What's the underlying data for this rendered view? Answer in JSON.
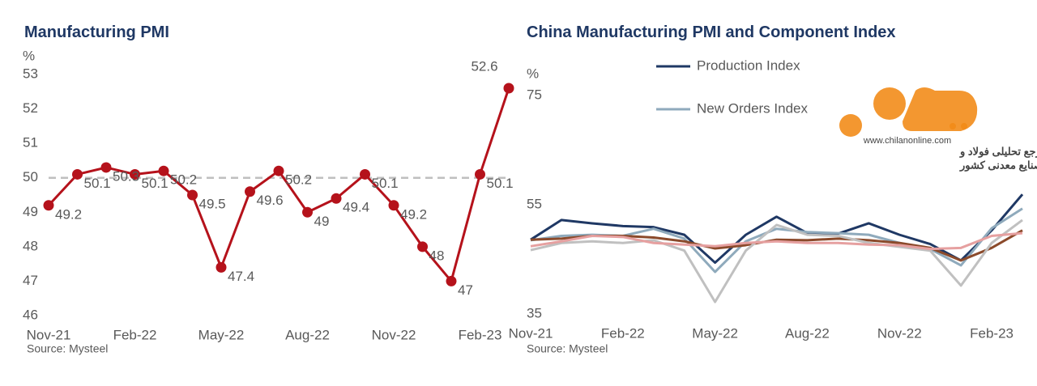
{
  "chart_data": [
    {
      "type": "line",
      "title": "Manufacturing PMI",
      "y_unit": "%",
      "source": "Source: Mysteel",
      "categories": [
        "Nov-21",
        null,
        null,
        "Feb-22",
        null,
        null,
        "May-22",
        null,
        null,
        "Aug-22",
        null,
        null,
        "Nov-22",
        null,
        null,
        "Feb-23",
        null
      ],
      "series": [
        {
          "color": "#b5121b",
          "values": [
            49.2,
            50.1,
            50.3,
            50.1,
            50.2,
            49.5,
            47.4,
            49.6,
            50.2,
            49,
            49.4,
            50.1,
            49.2,
            48,
            47,
            50.1,
            52.6
          ]
        }
      ],
      "markers": true,
      "data_labels": true,
      "reference_line": 50,
      "reference_color": "#bfbfbf",
      "ylim": [
        46,
        53
      ],
      "yticks": [
        46,
        47,
        48,
        49,
        50,
        51,
        52,
        53
      ],
      "grid": false
    },
    {
      "type": "line",
      "title": "China Manufacturing PMI and Component Index",
      "y_unit": "%",
      "source": "Source: Mysteel",
      "categories": [
        "Nov-21",
        null,
        null,
        "Feb-22",
        null,
        null,
        "May-22",
        null,
        null,
        "Aug-22",
        null,
        null,
        "Nov-22",
        null,
        null,
        "Feb-23",
        null
      ],
      "series": [
        {
          "name": "Production Index",
          "color": "#1f3864",
          "values": [
            48.6,
            52.2,
            51.6,
            51.1,
            50.9,
            49.5,
            44.4,
            49.5,
            52.8,
            49.8,
            49.7,
            51.6,
            49.5,
            47.8,
            44.8,
            50.3,
            56.9
          ]
        },
        {
          "name": "New Orders Index",
          "color": "#8faabc",
          "values": [
            48.5,
            49.3,
            49.5,
            49.3,
            50.6,
            48.8,
            42.7,
            48.3,
            50.6,
            50.0,
            49.8,
            49.5,
            48.0,
            46.9,
            43.9,
            50.7,
            54.3
          ]
        },
        {
          "color": "#8b4a2b",
          "values": [
            48.6,
            48.8,
            49.3,
            49.3,
            49.0,
            48.3,
            47.0,
            47.6,
            48.6,
            48.5,
            48.8,
            48.5,
            48.0,
            47.1,
            44.8,
            47.1,
            50.3
          ]
        },
        {
          "color": "#c0c0c0",
          "values": [
            46.7,
            48.0,
            48.3,
            48.0,
            48.5,
            46.6,
            37.2,
            46.6,
            51.3,
            49.5,
            49.3,
            48.0,
            47.3,
            46.6,
            40.2,
            48.0,
            52.2
          ]
        },
        {
          "color": "#e6a0a0",
          "values": [
            47.4,
            48.3,
            49.3,
            49.1,
            48.0,
            47.7,
            47.4,
            48.0,
            48.3,
            48.0,
            48.0,
            47.7,
            47.6,
            46.9,
            47.1,
            49.3,
            49.8
          ]
        }
      ],
      "markers": false,
      "data_labels": false,
      "ylim": [
        35,
        75
      ],
      "yticks": [
        35,
        55,
        75
      ],
      "grid": false
    }
  ],
  "watermark": {
    "url": "www.chilanonline.com",
    "tagline_1": "مرجع تحلیلی فولاد و",
    "tagline_2": "صنایع معدنی کشور"
  }
}
